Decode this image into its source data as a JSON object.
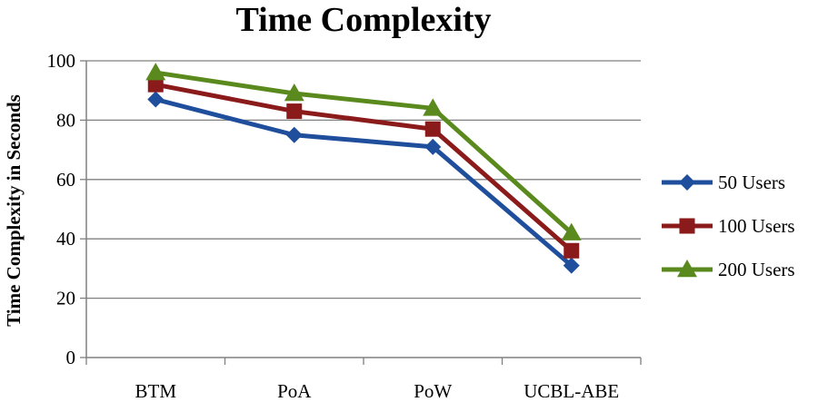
{
  "chart_data": {
    "type": "line",
    "title": "Time Complexity",
    "xlabel": "",
    "ylabel": "Time Complexity in Seconds",
    "categories": [
      "BTM",
      "PoA",
      "PoW",
      "UCBL-ABE"
    ],
    "ylim": [
      0,
      100
    ],
    "yticks": [
      0,
      20,
      40,
      60,
      80,
      100
    ],
    "grid": true,
    "legend_position": "right",
    "series": [
      {
        "name": "50 Users",
        "values": [
          87,
          75,
          71,
          31
        ],
        "color": "#1f4e9c",
        "marker": "diamond"
      },
      {
        "name": "100 Users",
        "values": [
          92,
          83,
          77,
          36
        ],
        "color": "#8b1a1a",
        "marker": "square"
      },
      {
        "name": "200 Users",
        "values": [
          96,
          89,
          84,
          42
        ],
        "color": "#5a8a1e",
        "marker": "triangle"
      }
    ]
  }
}
